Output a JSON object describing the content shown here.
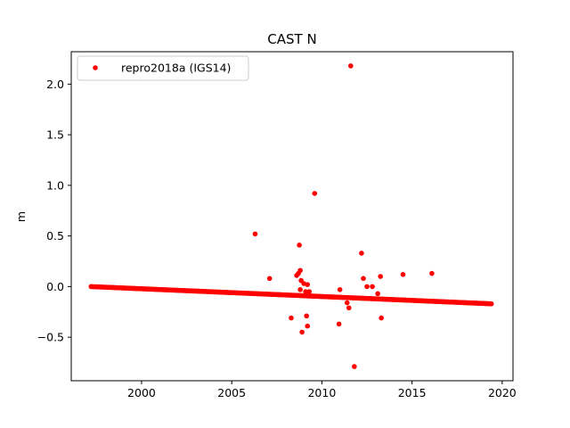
{
  "chart_data": {
    "type": "scatter",
    "title": "CAST N",
    "xlabel": "",
    "ylabel": "m",
    "xlim": [
      1996.1,
      2020.6
    ],
    "ylim": [
      -0.93,
      2.32
    ],
    "xticks": [
      2000,
      2005,
      2010,
      2015,
      2020
    ],
    "yticks": [
      -0.5,
      0.0,
      0.5,
      1.0,
      1.5,
      2.0
    ],
    "xtick_labels": [
      "2000",
      "2005",
      "2010",
      "2015",
      "2020"
    ],
    "ytick_labels": [
      "−0.5",
      "0.0",
      "0.5",
      "1.0",
      "1.5",
      "2.0"
    ],
    "grid": false,
    "legend_position": "top-left",
    "series": [
      {
        "name": "repro2018a (IGS14)",
        "color": "#ff0000",
        "marker": "circle",
        "trend": {
          "x_start": 1997.2,
          "x_end": 2019.4,
          "y_start": 0.0,
          "y_end": -0.17
        },
        "x": [
          2006.3,
          2007.1,
          2008.3,
          2008.6,
          2008.7,
          2008.75,
          2008.8,
          2008.8,
          2008.85,
          2008.9,
          2009.0,
          2009.1,
          2009.15,
          2009.2,
          2009.2,
          2009.3,
          2009.6,
          2010.95,
          2011.0,
          2011.4,
          2011.5,
          2011.6,
          2011.8,
          2012.2,
          2012.3,
          2012.5,
          2012.8,
          2013.1,
          2013.3,
          2013.25,
          2014.5,
          2016.1
        ],
        "y": [
          0.52,
          0.08,
          -0.31,
          0.11,
          0.13,
          0.41,
          0.16,
          -0.03,
          0.06,
          -0.45,
          0.03,
          -0.05,
          -0.29,
          -0.39,
          0.02,
          -0.05,
          0.92,
          -0.37,
          -0.03,
          -0.16,
          -0.21,
          2.18,
          -0.79,
          0.33,
          0.08,
          0.0,
          0.0,
          -0.07,
          -0.31,
          0.1,
          0.12,
          0.13
        ]
      }
    ]
  }
}
